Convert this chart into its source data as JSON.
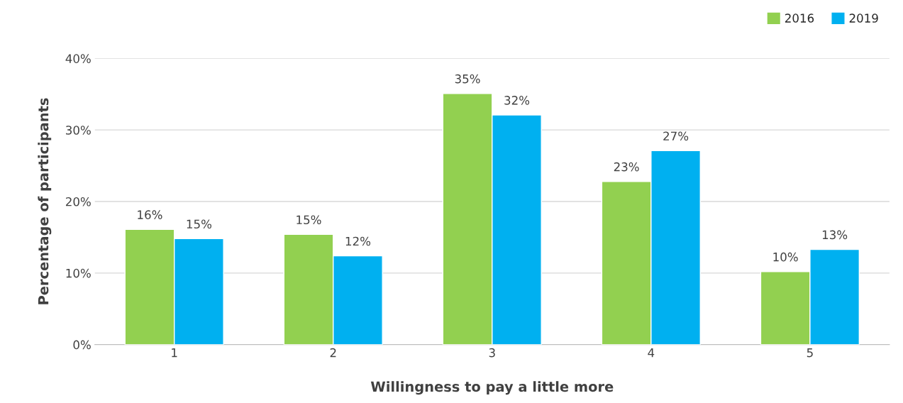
{
  "chart_data": {
    "type": "bar",
    "xlabel": "Willingness to pay a little more",
    "ylabel": "Percentage of participants",
    "categories": [
      "1",
      "2",
      "3",
      "4",
      "5"
    ],
    "series": [
      {
        "name": "2016",
        "color": "#92d050",
        "values": [
          16.1,
          15.4,
          35.1,
          22.8,
          10.2
        ],
        "value_labels": [
          "16%",
          "15%",
          "35%",
          "23%",
          "10%"
        ]
      },
      {
        "name": "2019",
        "color": "#00b0f0",
        "values": [
          14.8,
          12.4,
          32.1,
          27.1,
          13.3
        ],
        "value_labels": [
          "15%",
          "12%",
          "32%",
          "27%",
          "13%"
        ]
      }
    ],
    "ylim": [
      0,
      40
    ],
    "yticks": [
      {
        "value": 0,
        "label": "0%"
      },
      {
        "value": 10,
        "label": "10%"
      },
      {
        "value": 20,
        "label": "20%"
      },
      {
        "value": 30,
        "label": "30%"
      },
      {
        "value": 40,
        "label": "40%"
      }
    ],
    "grid": "y",
    "legend": "top right"
  }
}
